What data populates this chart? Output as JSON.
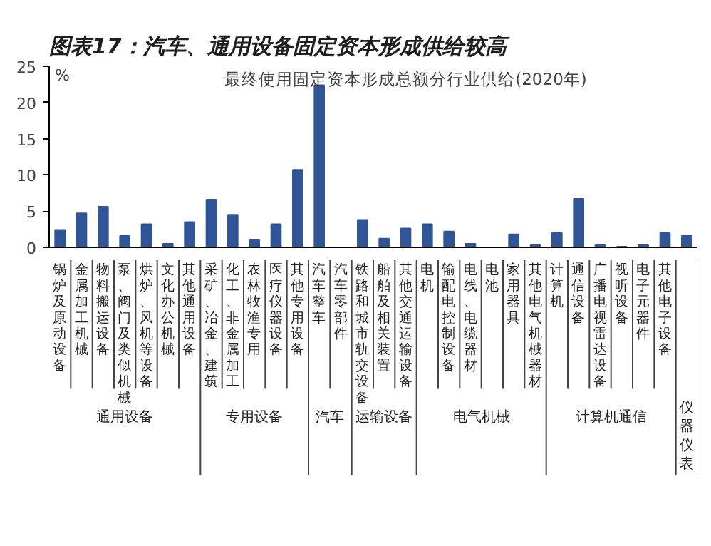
{
  "chart_data": {
    "type": "bar",
    "title": "图表17：汽车、通用设备固定资本形成供给较高",
    "subtitle": "最终使用固定资本形成总额分行业供给(2020年)",
    "ylabel": "%",
    "categories": [
      "锅炉及原动设备",
      "金属加工机械",
      "物料搬运设备",
      "泵、阀门及类似机械",
      "烘炉、风机等设备",
      "文化办公机械",
      "其他通用设备",
      "采矿、冶金、建筑",
      "化工、非金属加工",
      "农林牧渔专用",
      "医疗仪器设备",
      "其他专用设备",
      "汽车整车",
      "汽车零部件",
      "铁路和城市轨交设备",
      "船舶及相关装置",
      "其他交通运输设备",
      "电机",
      "输配电控制设备",
      "电线、电缆器材",
      "电池",
      "家用器具",
      "其他电气机械器材",
      "计算机",
      "通信设备",
      "广播电视雷达设备",
      "视听设备",
      "电子元器件",
      "其他电子设备",
      null
    ],
    "values": [
      2.4,
      4.7,
      5.6,
      1.6,
      3.2,
      0.5,
      3.5,
      6.6,
      4.5,
      1.0,
      3.2,
      10.7,
      22.4,
      0,
      3.8,
      1.2,
      2.6,
      3.2,
      2.2,
      0.5,
      0,
      1.8,
      0.3,
      2.0,
      6.7,
      0.3,
      0.1,
      0.3,
      2.0,
      1.6
    ],
    "color": "#2f5597",
    "ylim": [
      0,
      25
    ],
    "yticks": [
      0,
      5,
      10,
      15,
      20,
      25
    ],
    "grid": false,
    "annotations": [
      "通用设备",
      "专用设备",
      "汽车",
      "运输设备",
      "电气机械",
      "计算机通信",
      "仪器仪表"
    ]
  }
}
